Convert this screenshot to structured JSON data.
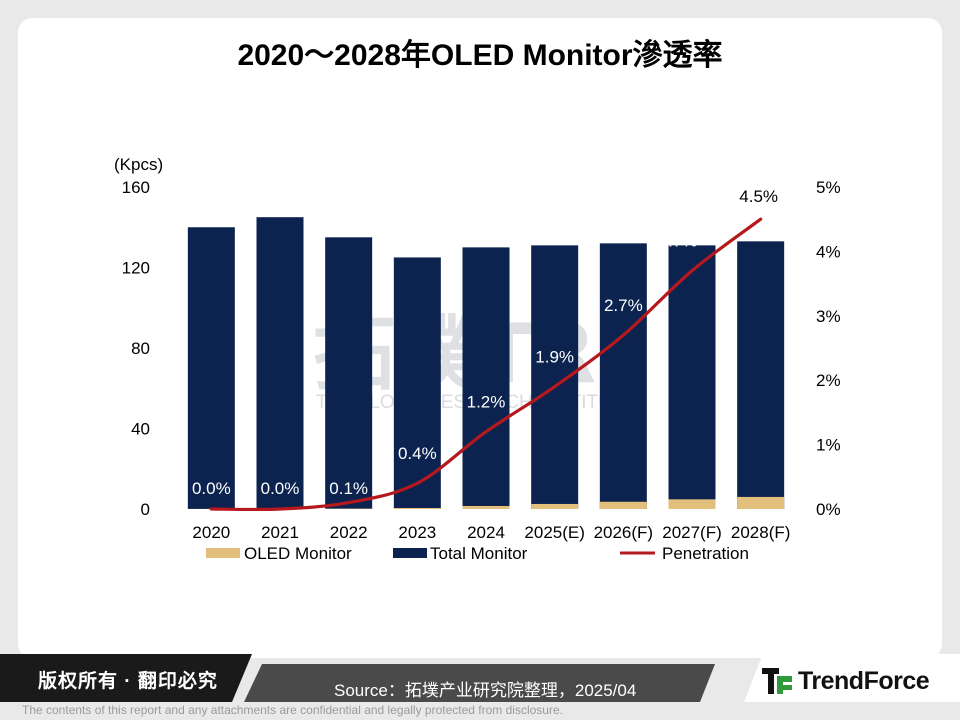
{
  "title": "2020～2028年OLED Monitor滲透率",
  "footer": {
    "rights": "版权所有 · 翻印必究",
    "source": "Source：拓墣产业研究院整理，2025/04",
    "brand": "TrendForce",
    "disclaimer": "The contents of this report and any attachments are confidential and legally protected from disclosure."
  },
  "watermark": {
    "main": "拓墣TRI",
    "sub": "TOPOLOGY RESEARCH INSTITUTE"
  },
  "chart_data": {
    "type": "bar",
    "categories": [
      "2020",
      "2021",
      "2022",
      "2023",
      "2024",
      "2025(E)",
      "2026(F)",
      "2027(F)",
      "2028(F)"
    ],
    "y_unit_label": "(Kpcs)",
    "ylim": [
      0,
      160
    ],
    "yticks": [
      0,
      40,
      80,
      120,
      160
    ],
    "y2lim": [
      0,
      5
    ],
    "y2ticks": [
      "0%",
      "1%",
      "2%",
      "3%",
      "4%",
      "5%"
    ],
    "series": [
      {
        "name": "OLED Monitor",
        "kind": "bar",
        "values": [
          0.05,
          0.05,
          0.2,
          0.5,
          1.5,
          2.5,
          3.6,
          4.8,
          6.0
        ],
        "color": "#e2c07c"
      },
      {
        "name": "Total Monitor",
        "kind": "bar",
        "values": [
          140,
          145,
          135,
          125,
          130,
          131,
          132,
          131,
          133
        ],
        "color": "#0c2350"
      },
      {
        "name": "Penetration",
        "kind": "line",
        "axis": "right",
        "values": [
          0.0,
          0.0,
          0.1,
          0.4,
          1.2,
          1.9,
          2.7,
          3.7,
          4.5
        ],
        "labels": [
          "0.0%",
          "0.0%",
          "0.1%",
          "0.4%",
          "1.2%",
          "1.9%",
          "2.7%",
          "3.7%",
          "4.5%"
        ],
        "color": "#b5191e"
      }
    ],
    "legend_position": "bottom",
    "grid": false
  }
}
